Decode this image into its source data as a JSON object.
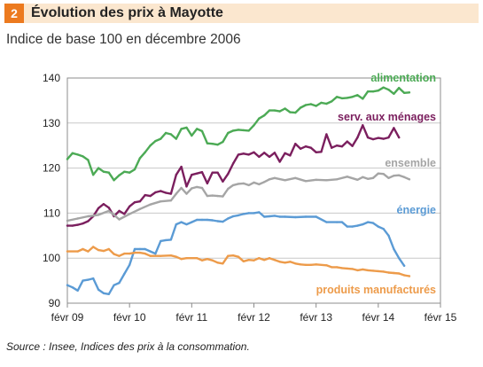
{
  "header": {
    "number": "2",
    "title": "Évolution des prix à Mayotte",
    "subtitle": "Indice de base 100 en décembre 2006"
  },
  "source": "Source : Insee, Indices des prix à la consommation.",
  "chart_data": {
    "type": "line",
    "grid": true,
    "ylim": [
      90,
      140
    ],
    "yticks": [
      "90",
      "100",
      "110",
      "120",
      "130",
      "140"
    ],
    "xticks": [
      "févr 09",
      "févr 10",
      "févr 11",
      "févr 12",
      "févr 13",
      "févr 14",
      "févr 15"
    ],
    "x_range": [
      "févr 09",
      "févr 15"
    ],
    "series": [
      {
        "name": "alimentation",
        "color": "#4caa55",
        "values": [
          [
            0,
            122
          ],
          [
            1,
            123.3
          ],
          [
            2,
            123
          ],
          [
            3,
            122.6
          ],
          [
            4,
            121.8
          ],
          [
            5,
            118.5
          ],
          [
            6,
            120
          ],
          [
            7,
            119.2
          ],
          [
            8,
            119
          ],
          [
            9,
            117.3
          ],
          [
            10,
            118.4
          ],
          [
            11,
            119.2
          ],
          [
            12,
            119
          ],
          [
            13,
            119.7
          ],
          [
            14,
            122.2
          ],
          [
            15,
            123.5
          ],
          [
            16,
            125
          ],
          [
            17,
            126
          ],
          [
            18,
            126.5
          ],
          [
            19,
            127.8
          ],
          [
            20,
            127.5
          ],
          [
            21,
            126.5
          ],
          [
            22,
            128.7
          ],
          [
            23,
            129
          ],
          [
            24,
            127.2
          ],
          [
            25,
            128.7
          ],
          [
            26,
            128.2
          ],
          [
            27,
            125.5
          ],
          [
            28,
            125.4
          ],
          [
            29,
            125.2
          ],
          [
            30,
            125.8
          ],
          [
            31,
            127.8
          ],
          [
            32,
            128.3
          ],
          [
            33,
            128.5
          ],
          [
            34,
            128.4
          ],
          [
            35,
            128.3
          ],
          [
            36,
            129.5
          ],
          [
            37,
            131
          ],
          [
            38,
            131.7
          ],
          [
            39,
            132.8
          ],
          [
            40,
            132.8
          ],
          [
            41,
            132.6
          ],
          [
            42,
            133.2
          ],
          [
            43,
            132.4
          ],
          [
            44,
            132.3
          ],
          [
            45,
            133.4
          ],
          [
            46,
            134
          ],
          [
            47,
            134.2
          ],
          [
            48,
            133.8
          ],
          [
            49,
            134.5
          ],
          [
            50,
            134.3
          ],
          [
            51,
            134.8
          ],
          [
            52,
            135.8
          ],
          [
            53,
            135.5
          ],
          [
            54,
            135.6
          ],
          [
            55,
            135.8
          ],
          [
            56,
            136.2
          ],
          [
            57,
            135.4
          ],
          [
            58,
            137
          ],
          [
            59,
            137
          ],
          [
            60,
            137.2
          ],
          [
            61,
            137.9
          ],
          [
            62,
            137.4
          ],
          [
            63,
            136.5
          ],
          [
            64,
            137.8
          ],
          [
            65,
            136.7
          ],
          [
            66,
            136.8
          ]
        ]
      },
      {
        "name": "serv. aux ménages",
        "color": "#7b1f5e",
        "values": [
          [
            0,
            107.2
          ],
          [
            1,
            107.2
          ],
          [
            2,
            107.4
          ],
          [
            3,
            107.7
          ],
          [
            4,
            108.2
          ],
          [
            5,
            109.3
          ],
          [
            6,
            111.1
          ],
          [
            7,
            112
          ],
          [
            8,
            111.2
          ],
          [
            9,
            109.3
          ],
          [
            10,
            110.5
          ],
          [
            11,
            109.8
          ],
          [
            12,
            111.5
          ],
          [
            13,
            112.4
          ],
          [
            14,
            112.6
          ],
          [
            15,
            114
          ],
          [
            16,
            113.8
          ],
          [
            17,
            114.6
          ],
          [
            18,
            114.9
          ],
          [
            19,
            114.5
          ],
          [
            20,
            114.3
          ],
          [
            21,
            118.5
          ],
          [
            22,
            120.3
          ],
          [
            23,
            115.9
          ],
          [
            24,
            118.5
          ],
          [
            25,
            118.8
          ],
          [
            26,
            119.1
          ],
          [
            27,
            116.6
          ],
          [
            28,
            119
          ],
          [
            29,
            119
          ],
          [
            30,
            117
          ],
          [
            31,
            118.7
          ],
          [
            32,
            121
          ],
          [
            33,
            123
          ],
          [
            34,
            123.2
          ],
          [
            35,
            123
          ],
          [
            36,
            123.5
          ],
          [
            37,
            122.5
          ],
          [
            38,
            123.4
          ],
          [
            39,
            122.5
          ],
          [
            40,
            123.4
          ],
          [
            41,
            121.4
          ],
          [
            42,
            123.3
          ],
          [
            43,
            122.8
          ],
          [
            44,
            125.4
          ],
          [
            45,
            124.3
          ],
          [
            46,
            124.8
          ],
          [
            47,
            124.5
          ],
          [
            48,
            123.5
          ],
          [
            49,
            123.6
          ],
          [
            50,
            127.5
          ],
          [
            51,
            124.5
          ],
          [
            52,
            125
          ],
          [
            53,
            124.8
          ],
          [
            54,
            125.9
          ],
          [
            55,
            124.9
          ],
          [
            56,
            126.8
          ],
          [
            57,
            129.5
          ],
          [
            58,
            126.8
          ],
          [
            59,
            126.4
          ],
          [
            60,
            126.7
          ],
          [
            61,
            126.5
          ],
          [
            62,
            126.8
          ],
          [
            63,
            128.9
          ],
          [
            64,
            126.8
          ]
        ]
      },
      {
        "name": "ensemble",
        "color": "#a5a5a5",
        "values": [
          [
            0,
            108.3
          ],
          [
            2,
            108.8
          ],
          [
            4,
            109.3
          ],
          [
            6,
            109.6
          ],
          [
            8,
            110.5
          ],
          [
            9,
            109.6
          ],
          [
            10,
            108.6
          ],
          [
            12,
            109.8
          ],
          [
            14,
            110.9
          ],
          [
            16,
            111.9
          ],
          [
            18,
            112.6
          ],
          [
            20,
            112.8
          ],
          [
            21,
            114.3
          ],
          [
            22,
            115.6
          ],
          [
            23,
            114.3
          ],
          [
            24,
            115.5
          ],
          [
            25,
            115.8
          ],
          [
            26,
            115.6
          ],
          [
            27,
            113.8
          ],
          [
            28,
            113.9
          ],
          [
            29,
            113.8
          ],
          [
            30,
            113.7
          ],
          [
            31,
            115.4
          ],
          [
            32,
            116.2
          ],
          [
            33,
            116.5
          ],
          [
            34,
            116.6
          ],
          [
            35,
            116.2
          ],
          [
            36,
            116.8
          ],
          [
            37,
            116.4
          ],
          [
            38,
            116.9
          ],
          [
            39,
            117.5
          ],
          [
            40,
            117.8
          ],
          [
            42,
            117.3
          ],
          [
            44,
            117.8
          ],
          [
            46,
            117.1
          ],
          [
            48,
            117.4
          ],
          [
            50,
            117.3
          ],
          [
            52,
            117.5
          ],
          [
            54,
            118.1
          ],
          [
            56,
            117.4
          ],
          [
            57,
            118
          ],
          [
            58,
            117.6
          ],
          [
            59,
            117.8
          ],
          [
            60,
            118.8
          ],
          [
            61,
            118.7
          ],
          [
            62,
            117.8
          ],
          [
            63,
            118.3
          ],
          [
            64,
            118.4
          ],
          [
            65,
            118
          ],
          [
            66,
            117.5
          ]
        ]
      },
      {
        "name": "énergie",
        "color": "#5b9bd5",
        "values": [
          [
            0,
            94
          ],
          [
            1,
            93.5
          ],
          [
            2,
            92.8
          ],
          [
            3,
            95
          ],
          [
            4,
            95.2
          ],
          [
            5,
            95.5
          ],
          [
            6,
            93
          ],
          [
            7,
            92.2
          ],
          [
            8,
            92
          ],
          [
            9,
            94
          ],
          [
            10,
            94.5
          ],
          [
            11,
            96.5
          ],
          [
            12,
            98.5
          ],
          [
            13,
            102
          ],
          [
            14,
            102
          ],
          [
            15,
            102
          ],
          [
            16,
            101.5
          ],
          [
            17,
            101
          ],
          [
            18,
            103.8
          ],
          [
            19,
            104
          ],
          [
            20,
            104.1
          ],
          [
            21,
            107.5
          ],
          [
            22,
            108
          ],
          [
            23,
            107.5
          ],
          [
            24,
            108
          ],
          [
            25,
            108.5
          ],
          [
            26,
            108.5
          ],
          [
            27,
            108.5
          ],
          [
            28,
            108.4
          ],
          [
            29,
            108.2
          ],
          [
            30,
            108.1
          ],
          [
            31,
            108.8
          ],
          [
            32,
            109.3
          ],
          [
            33,
            109.5
          ],
          [
            34,
            109.8
          ],
          [
            35,
            110
          ],
          [
            36,
            110
          ],
          [
            37,
            110.2
          ],
          [
            38,
            109.2
          ],
          [
            39,
            109.3
          ],
          [
            40,
            109.4
          ],
          [
            41,
            109.2
          ],
          [
            42,
            109.2
          ],
          [
            44,
            109.1
          ],
          [
            46,
            109.2
          ],
          [
            48,
            109.2
          ],
          [
            50,
            108
          ],
          [
            52,
            108
          ],
          [
            53,
            108
          ],
          [
            54,
            107
          ],
          [
            55,
            107
          ],
          [
            56,
            107.2
          ],
          [
            57,
            107.5
          ],
          [
            58,
            108
          ],
          [
            59,
            107.8
          ],
          [
            60,
            107
          ],
          [
            61,
            106.5
          ],
          [
            62,
            105
          ],
          [
            63,
            102
          ],
          [
            64,
            100
          ],
          [
            65,
            98.3
          ]
        ]
      },
      {
        "name": "produits manufacturés",
        "color": "#ed9b4a",
        "values": [
          [
            0,
            101.5
          ],
          [
            2,
            101.5
          ],
          [
            3,
            102
          ],
          [
            4,
            101.5
          ],
          [
            5,
            102.5
          ],
          [
            6,
            101.8
          ],
          [
            7,
            101.6
          ],
          [
            8,
            102
          ],
          [
            9,
            100.9
          ],
          [
            10,
            100.5
          ],
          [
            11,
            101
          ],
          [
            12,
            101
          ],
          [
            13,
            101.2
          ],
          [
            14,
            101.2
          ],
          [
            15,
            101
          ],
          [
            16,
            100.5
          ],
          [
            18,
            100.5
          ],
          [
            20,
            100.6
          ],
          [
            21,
            100.3
          ],
          [
            22,
            99.8
          ],
          [
            23,
            100
          ],
          [
            25,
            100
          ],
          [
            26,
            99.5
          ],
          [
            27,
            99.8
          ],
          [
            28,
            99.5
          ],
          [
            29,
            99
          ],
          [
            30,
            98.8
          ],
          [
            31,
            100.5
          ],
          [
            32,
            100.6
          ],
          [
            33,
            100.3
          ],
          [
            34,
            99.3
          ],
          [
            35,
            99.6
          ],
          [
            36,
            99.5
          ],
          [
            37,
            100
          ],
          [
            38,
            99.6
          ],
          [
            39,
            100
          ],
          [
            40,
            99.6
          ],
          [
            41,
            99.2
          ],
          [
            42,
            99
          ],
          [
            43,
            99.2
          ],
          [
            44,
            98.8
          ],
          [
            45,
            98.6
          ],
          [
            46,
            98.5
          ],
          [
            47,
            98.5
          ],
          [
            48,
            98.6
          ],
          [
            50,
            98.4
          ],
          [
            51,
            98
          ],
          [
            52,
            98
          ],
          [
            53,
            97.8
          ],
          [
            54,
            97.7
          ],
          [
            55,
            97.6
          ],
          [
            56,
            97.3
          ],
          [
            57,
            97.5
          ],
          [
            58,
            97.3
          ],
          [
            59,
            97.2
          ],
          [
            60,
            97.1
          ],
          [
            61,
            97
          ],
          [
            62,
            96.8
          ],
          [
            63,
            96.7
          ],
          [
            64,
            96.6
          ],
          [
            65,
            96.2
          ],
          [
            66,
            96
          ]
        ]
      }
    ]
  }
}
